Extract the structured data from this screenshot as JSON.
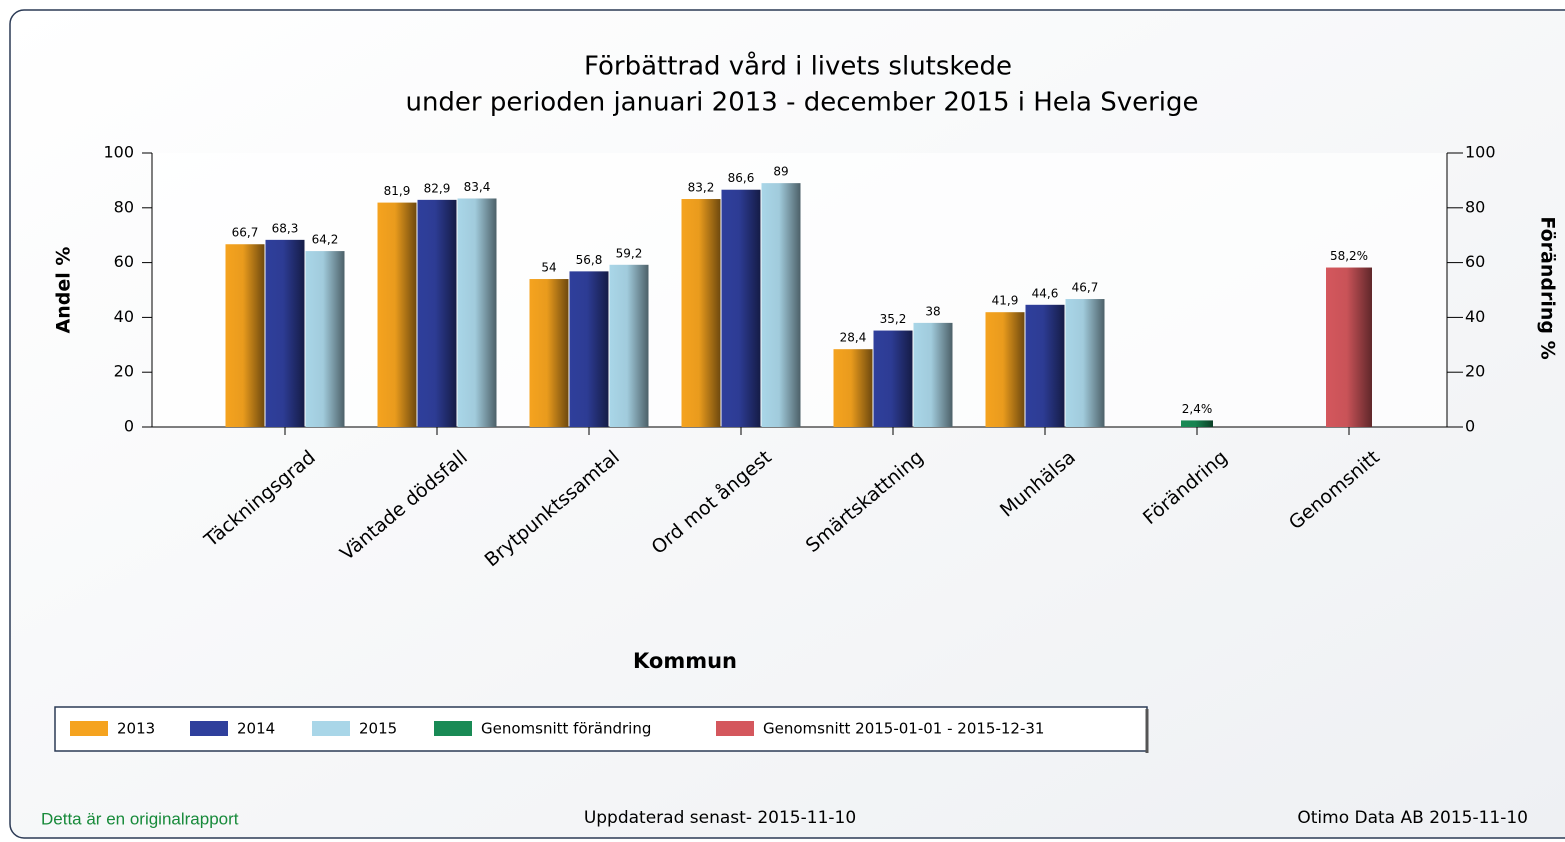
{
  "chart_data": {
    "type": "bar",
    "title": "Förbättrad vård i livets slutskede",
    "subtitle": "under perioden januari 2013 - december 2015 i Hela Sverige",
    "y_label": "Andel %",
    "y2_label": "Förändring %",
    "x_label": "Kommun",
    "categories": [
      "Täckningsgrad",
      "Väntade dödsfall",
      "Brytpunktssamtal",
      "Ord mot ångest",
      "Smärtskattning",
      "Munhälsa",
      "Förändring",
      "Genomsnitt"
    ],
    "series": [
      {
        "name": "2013",
        "color": "#f5a31f",
        "values": [
          66.7,
          81.9,
          54,
          83.2,
          28.4,
          41.9,
          null,
          null
        ],
        "value_labels": [
          "66,7",
          "81,9",
          "54",
          "83,2",
          "28,4",
          "41,9",
          null,
          null
        ]
      },
      {
        "name": "2014",
        "color": "#2f3f9c",
        "values": [
          68.3,
          82.9,
          56.8,
          86.6,
          35.2,
          44.6,
          null,
          null
        ],
        "value_labels": [
          "68,3",
          "82,9",
          "56,8",
          "86,6",
          "35,2",
          "44,6",
          null,
          null
        ]
      },
      {
        "name": "2015",
        "color": "#a9d6e8",
        "values": [
          64.2,
          83.4,
          59.2,
          89,
          38,
          46.7,
          null,
          null
        ],
        "value_labels": [
          "64,2",
          "83,4",
          "59,2",
          "89",
          "38",
          "46,7",
          null,
          null
        ]
      },
      {
        "name": "Genomsnitt förändring",
        "color": "#198a55",
        "axis": "y2",
        "values": [
          null,
          null,
          null,
          null,
          null,
          null,
          2.4,
          null
        ],
        "value_labels": [
          null,
          null,
          null,
          null,
          null,
          null,
          "2,4%",
          null
        ]
      },
      {
        "name": "Genomsnitt 2015-01-01 - 2015-12-31",
        "color": "#d4575d",
        "values": [
          null,
          null,
          null,
          null,
          null,
          null,
          null,
          58.2
        ],
        "value_labels": [
          null,
          null,
          null,
          null,
          null,
          null,
          null,
          "58,2%"
        ]
      }
    ],
    "ylim": [
      0,
      100
    ],
    "yticks": [
      0,
      20,
      40,
      60,
      80,
      100
    ],
    "y2lim": [
      0,
      100
    ],
    "y2ticks": [
      0,
      20,
      40,
      60,
      80,
      100
    ],
    "legend": "bottom-left"
  },
  "footer": {
    "left": "Detta är en originalrapport",
    "center": "Uppdaterad senast- 2015-11-10",
    "right": "Otimo Data AB 2015-11-10"
  }
}
